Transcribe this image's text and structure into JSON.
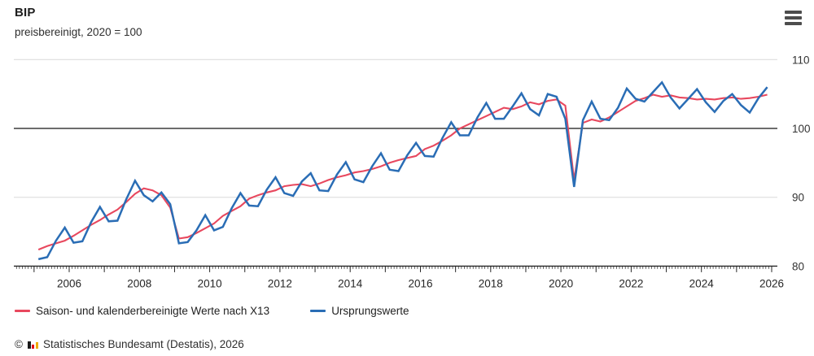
{
  "header": {
    "title": "BIP",
    "subtitle": "preisbereinigt, 2020 = 100"
  },
  "menu": {
    "icon": "hamburger-icon",
    "tooltip": "Chart menu"
  },
  "chart_data": {
    "type": "line",
    "title": "BIP",
    "subtitle": "preisbereinigt, 2020 = 100",
    "frequency": "quarterly",
    "x_start": "2005 Q1",
    "x_end": "2025 Q4",
    "x_label_years": [
      2006,
      2008,
      2010,
      2012,
      2014,
      2016,
      2018,
      2020,
      2022,
      2024,
      2026
    ],
    "x_minor_ticks": "monthly",
    "ylim": [
      80,
      110
    ],
    "y_tick_labels": [
      "110",
      "100",
      "90",
      "80"
    ],
    "y_axis_side": "right",
    "reference_line": 100,
    "grid": "horizontal",
    "legend_position": "bottom",
    "colors": {
      "adjusted": "#e8485e",
      "original": "#2a6db5",
      "grid_light": "#d9d9d9",
      "reference": "#3c3c3c",
      "axis": "#262626",
      "text": "#2e2e2e"
    },
    "series": [
      {
        "name": "Saison- und kalenderbereinigte Werte nach X13",
        "color": "#e8485e",
        "values": [
          82.4,
          82.9,
          83.3,
          83.7,
          84.4,
          85.2,
          86.0,
          86.7,
          87.5,
          88.2,
          89.3,
          90.5,
          91.3,
          91.0,
          90.3,
          88.5,
          84.0,
          84.2,
          84.8,
          85.5,
          86.2,
          87.3,
          88.0,
          88.7,
          89.8,
          90.3,
          90.7,
          91.0,
          91.6,
          91.8,
          91.9,
          91.6,
          92.0,
          92.5,
          92.9,
          93.2,
          93.6,
          93.8,
          94.1,
          94.5,
          95.0,
          95.4,
          95.7,
          96.0,
          97.0,
          97.5,
          98.2,
          99.0,
          100.0,
          100.6,
          101.2,
          101.8,
          102.4,
          103.0,
          102.8,
          103.2,
          103.8,
          103.5,
          104.0,
          104.2,
          103.3,
          92.5,
          100.8,
          101.3,
          101.0,
          101.6,
          102.4,
          103.2,
          104.0,
          104.4,
          104.9,
          104.6,
          104.8,
          104.5,
          104.4,
          104.2,
          104.3,
          104.2,
          104.4,
          104.5,
          104.3,
          104.4,
          104.6,
          104.9
        ]
      },
      {
        "name": "Ursprungswerte",
        "color": "#2a6db5",
        "values": [
          81.0,
          81.3,
          83.7,
          85.6,
          83.4,
          83.6,
          86.4,
          88.6,
          86.5,
          86.6,
          89.7,
          92.4,
          90.3,
          89.4,
          90.7,
          89.0,
          83.3,
          83.5,
          85.2,
          87.4,
          85.2,
          85.7,
          88.4,
          90.6,
          88.8,
          88.7,
          91.1,
          92.9,
          90.6,
          90.2,
          92.3,
          93.5,
          91.0,
          90.9,
          93.3,
          95.1,
          92.6,
          92.2,
          94.5,
          96.4,
          94.0,
          93.8,
          96.1,
          97.9,
          96.0,
          95.9,
          98.6,
          100.9,
          99.0,
          99.0,
          101.6,
          103.7,
          101.4,
          101.4,
          103.2,
          105.1,
          102.8,
          101.9,
          105.0,
          104.6,
          101.4,
          91.5,
          101.2,
          103.9,
          101.4,
          101.2,
          103.0,
          105.8,
          104.3,
          103.9,
          105.3,
          106.7,
          104.5,
          102.9,
          104.3,
          105.7,
          103.8,
          102.4,
          104.0,
          105.0,
          103.4,
          102.3,
          104.4,
          106.0
        ]
      }
    ]
  },
  "footer": {
    "copyright": "©",
    "logo": "destatis-bar-chart-icon",
    "text": "Statistisches Bundesamt (Destatis), 2026"
  }
}
